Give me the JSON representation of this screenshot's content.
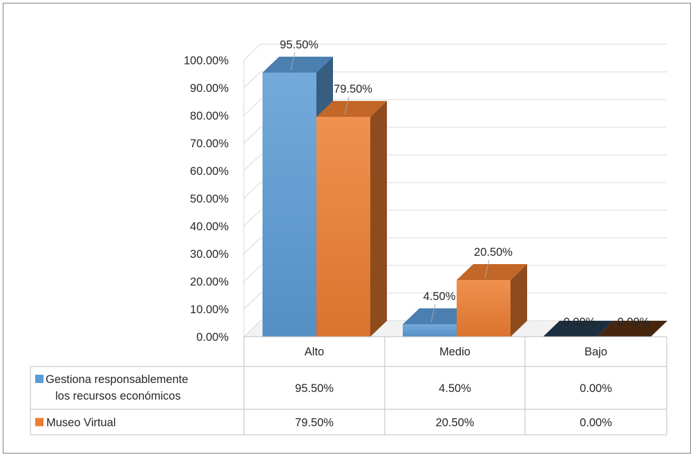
{
  "chart_data": {
    "type": "bar",
    "title": "",
    "xlabel": "",
    "ylabel": "",
    "categories": [
      "Alto",
      "Medio",
      "Bajo"
    ],
    "series": [
      {
        "name": "Gestiona responsablemente los recursos económicos",
        "name_lines": [
          "Gestiona responsablemente",
          "los recursos económicos"
        ],
        "values": [
          95.5,
          4.5,
          0.0
        ],
        "labels": [
          "95.50%",
          "4.50%",
          "0.00%"
        ],
        "color": "#5B9BD5"
      },
      {
        "name": "Museo Virtual",
        "name_lines": [
          "Museo Virtual"
        ],
        "values": [
          79.5,
          20.5,
          0.0
        ],
        "labels": [
          "79.50%",
          "20.50%",
          "0.00%"
        ],
        "color": "#ED7D31"
      }
    ],
    "ylim": [
      0,
      100
    ],
    "yticks": [
      "0.00%",
      "10.00%",
      "20.00%",
      "30.00%",
      "40.00%",
      "50.00%",
      "60.00%",
      "70.00%",
      "80.00%",
      "90.00%",
      "100.00%"
    ],
    "grid": true,
    "legend": "data-table",
    "three_d": true
  }
}
